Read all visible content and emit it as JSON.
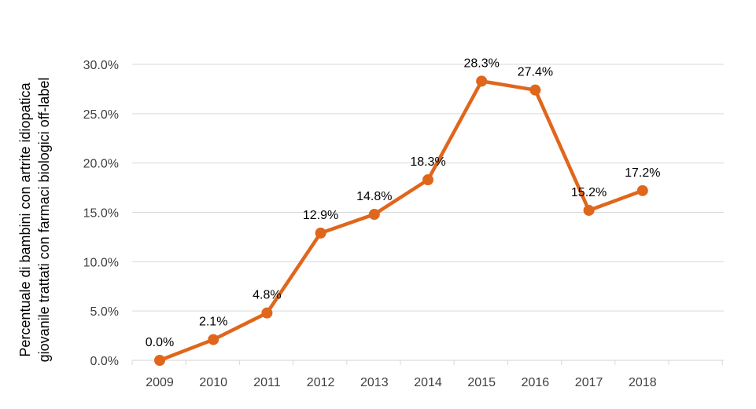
{
  "chart_data": {
    "type": "line",
    "title": "",
    "xlabel": "",
    "ylabel_lines": [
      "Percentuale di bambini con artrite idiopatica",
      "giovanile trattati con farmaci biologici off-label"
    ],
    "categories": [
      "2009",
      "2010",
      "2011",
      "2012",
      "2013",
      "2014",
      "2015",
      "2016",
      "2017",
      "2018"
    ],
    "series": [
      {
        "values": [
          0.0,
          2.1,
          4.8,
          12.9,
          14.8,
          18.3,
          28.3,
          27.4,
          15.2,
          17.2
        ],
        "labels": [
          "0.0%",
          "2.1%",
          "4.8%",
          "12.9%",
          "14.8%",
          "18.3%",
          "28.3%",
          "27.4%",
          "15.2%",
          "17.2%"
        ],
        "color": "#E0661C"
      }
    ],
    "ylim": [
      0,
      30
    ],
    "yticks": [
      0,
      5,
      10,
      15,
      20,
      25,
      30
    ],
    "ytick_labels": [
      "0.0%",
      "5.0%",
      "10.0%",
      "15.0%",
      "20.0%",
      "25.0%",
      "30.0%"
    ],
    "grid": true,
    "gridline_color": "#D9D9D9",
    "legend": "none"
  }
}
